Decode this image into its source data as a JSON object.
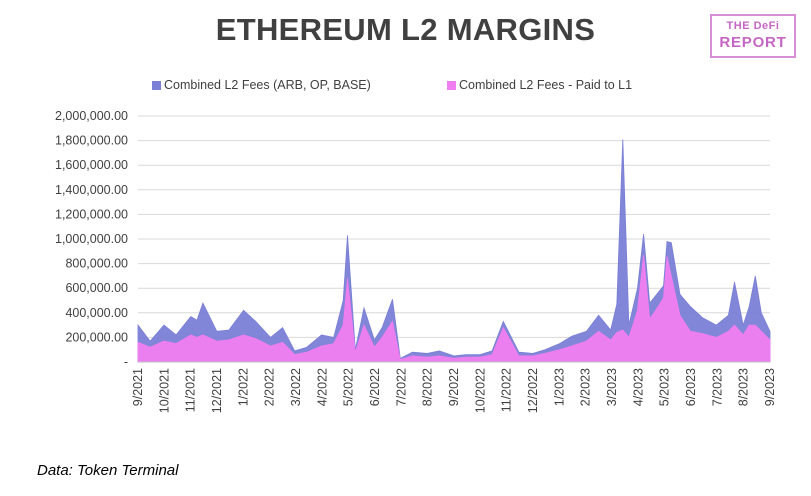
{
  "chart_data": {
    "type": "area",
    "title": "ETHEREUM L2 MARGINS",
    "xlabel": "",
    "ylabel": "",
    "ylim": [
      0,
      2000000
    ],
    "y_ticks": [
      "-",
      "200,000.00",
      "400,000.00",
      "600,000.00",
      "800,000.00",
      "1,000,000.00",
      "1,200,000.00",
      "1,400,000.00",
      "1,600,000.00",
      "1,800,000.00",
      "2,000,000.00"
    ],
    "x_ticks": [
      "9/2021",
      "10/2021",
      "11/2021",
      "12/2021",
      "1/2022",
      "2/2022",
      "3/2022",
      "4/2022",
      "5/2022",
      "6/2022",
      "7/2022",
      "8/2022",
      "9/2022",
      "10/2022",
      "11/2022",
      "12/2022",
      "1/2023",
      "2/2023",
      "3/2023",
      "4/2023",
      "5/2023",
      "6/2023",
      "7/2023",
      "8/2023",
      "9/2023"
    ],
    "grid": true,
    "legend_position": "top",
    "x": [
      "2021-09-01",
      "2021-09-15",
      "2021-10-01",
      "2021-10-15",
      "2021-11-01",
      "2021-11-08",
      "2021-11-15",
      "2021-12-01",
      "2021-12-15",
      "2022-01-01",
      "2022-01-15",
      "2022-02-01",
      "2022-02-15",
      "2022-03-01",
      "2022-03-15",
      "2022-04-01",
      "2022-04-15",
      "2022-04-26",
      "2022-05-01",
      "2022-05-10",
      "2022-05-20",
      "2022-06-01",
      "2022-06-10",
      "2022-06-22",
      "2022-07-01",
      "2022-07-15",
      "2022-08-01",
      "2022-08-15",
      "2022-09-01",
      "2022-09-15",
      "2022-10-01",
      "2022-10-15",
      "2022-10-28",
      "2022-11-15",
      "2022-12-01",
      "2022-12-15",
      "2023-01-01",
      "2023-01-15",
      "2023-02-01",
      "2023-02-15",
      "2023-03-01",
      "2023-03-08",
      "2023-03-15",
      "2023-03-22",
      "2023-04-01",
      "2023-04-08",
      "2023-04-15",
      "2023-04-22",
      "2023-05-01",
      "2023-05-05",
      "2023-05-10",
      "2023-05-20",
      "2023-06-01",
      "2023-06-15",
      "2023-07-01",
      "2023-07-15",
      "2023-07-22",
      "2023-08-01",
      "2023-08-08",
      "2023-08-15",
      "2023-08-22",
      "2023-09-01"
    ],
    "series": [
      {
        "name": "Combined L2 Fees (ARB, OP, BASE)",
        "color": "#7b7fd6",
        "values": [
          300000,
          170000,
          300000,
          220000,
          370000,
          340000,
          480000,
          250000,
          260000,
          420000,
          330000,
          200000,
          280000,
          90000,
          120000,
          220000,
          200000,
          500000,
          1030000,
          100000,
          440000,
          180000,
          280000,
          510000,
          30000,
          80000,
          70000,
          90000,
          50000,
          60000,
          60000,
          90000,
          330000,
          80000,
          70000,
          100000,
          150000,
          210000,
          250000,
          380000,
          260000,
          470000,
          1810000,
          300000,
          600000,
          1040000,
          480000,
          540000,
          620000,
          980000,
          970000,
          550000,
          450000,
          360000,
          300000,
          380000,
          650000,
          300000,
          450000,
          700000,
          400000,
          250000
        ]
      },
      {
        "name": "Combined L2 Fees - Paid to L1",
        "color": "#f07ef0",
        "values": [
          160000,
          120000,
          170000,
          150000,
          220000,
          200000,
          220000,
          170000,
          180000,
          220000,
          190000,
          130000,
          160000,
          60000,
          80000,
          130000,
          150000,
          300000,
          680000,
          80000,
          300000,
          120000,
          200000,
          330000,
          20000,
          50000,
          40000,
          50000,
          30000,
          40000,
          40000,
          60000,
          280000,
          50000,
          50000,
          70000,
          100000,
          130000,
          170000,
          250000,
          180000,
          240000,
          260000,
          200000,
          420000,
          870000,
          350000,
          420000,
          520000,
          860000,
          700000,
          380000,
          250000,
          230000,
          200000,
          250000,
          300000,
          220000,
          300000,
          300000,
          250000,
          180000
        ]
      }
    ]
  },
  "source_note": "Data: Token Terminal",
  "logo": {
    "line1": "THE DeFi",
    "line2": "REPORT"
  }
}
